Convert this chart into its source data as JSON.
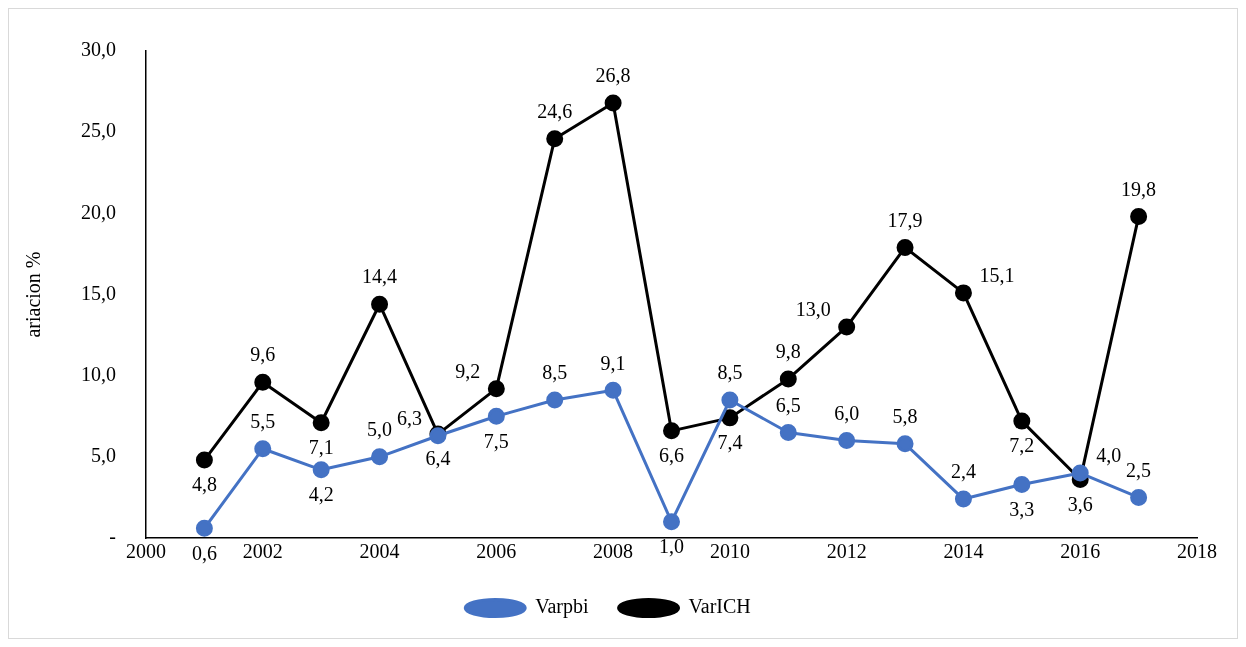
{
  "chart_data": {
    "type": "line",
    "ylabel": "ariacion %",
    "x": [
      2001,
      2002,
      2003,
      2004,
      2005,
      2006,
      2007,
      2008,
      2009,
      2010,
      2011,
      2012,
      2013,
      2014,
      2015,
      2016,
      2017
    ],
    "series": [
      {
        "name": "Varpbi",
        "color": "#4472c4",
        "values": [
          0.6,
          5.5,
          4.2,
          5.0,
          6.3,
          7.5,
          8.5,
          9.1,
          1.0,
          8.5,
          6.5,
          6.0,
          5.8,
          2.4,
          3.3,
          4.0,
          2.5
        ],
        "value_labels": [
          "0,6",
          "5,5",
          "4,2",
          "5,0",
          "6,3",
          "7,5",
          "8,5",
          "9,1",
          "1,0",
          "8,5",
          "6,5",
          "6,0",
          "5,8",
          "2,4",
          "3,3",
          "4,0",
          "2,5"
        ]
      },
      {
        "name": "VarICH",
        "color": "#000000",
        "values": [
          4.8,
          9.6,
          7.1,
          14.4,
          6.4,
          9.2,
          24.6,
          26.8,
          6.6,
          7.4,
          9.8,
          13.0,
          17.9,
          15.1,
          7.2,
          3.6,
          19.8
        ],
        "value_labels": [
          "4,8",
          "9,6",
          "7,1",
          "14,4",
          "6,4",
          "9,2",
          "24,6",
          "26,8",
          "6,6",
          "7,4",
          "9,8",
          "13,0",
          "17,9",
          "15,1",
          "7,2",
          "3,6",
          "19,8"
        ]
      }
    ],
    "xlim": [
      2000,
      2018
    ],
    "xticks": [
      2000,
      2002,
      2004,
      2006,
      2008,
      2010,
      2012,
      2014,
      2016,
      2018
    ],
    "ylim": [
      0,
      30
    ],
    "yticks": [
      {
        "value": 0,
        "label": "-"
      },
      {
        "value": 5,
        "label": "5,0"
      },
      {
        "value": 10,
        "label": "10,0"
      },
      {
        "value": 15,
        "label": "15,0"
      },
      {
        "value": 20,
        "label": "20,0"
      },
      {
        "value": 25,
        "label": "25,0"
      },
      {
        "value": 30,
        "label": "30,0"
      }
    ],
    "grid": false,
    "legend": "bottom",
    "marker": "circle",
    "line_style": "solid"
  }
}
